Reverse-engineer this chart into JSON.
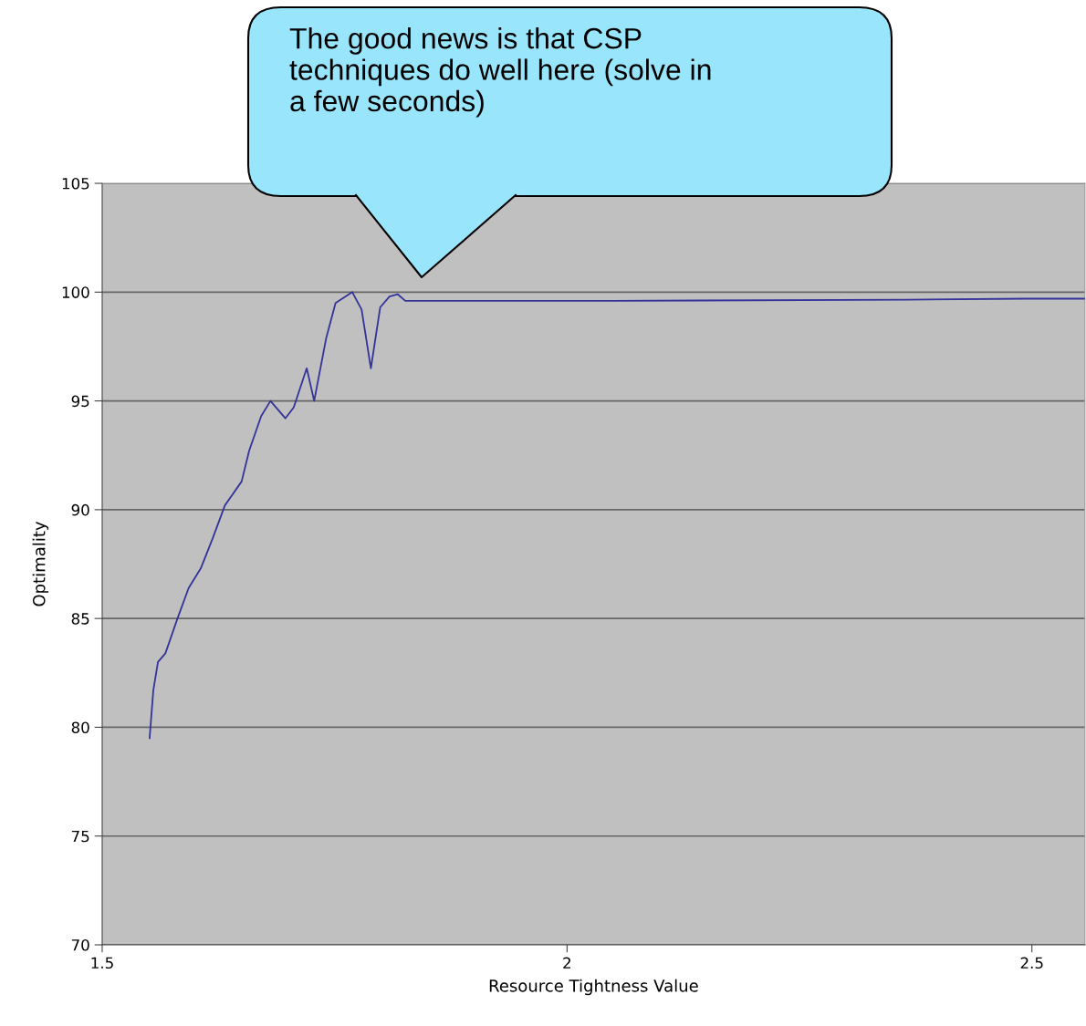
{
  "chart_data": {
    "type": "line",
    "xlabel": "Resource Tightness Value",
    "ylabel": "Optimality",
    "x": [
      1.551,
      1.555,
      1.56,
      1.568,
      1.581,
      1.593,
      1.606,
      1.619,
      1.632,
      1.65,
      1.658,
      1.671,
      1.681,
      1.697,
      1.706,
      1.72,
      1.728,
      1.741,
      1.751,
      1.769,
      1.779,
      1.789,
      1.799,
      1.809,
      1.818,
      1.826,
      2.049,
      2.366,
      2.493,
      2.557
    ],
    "series": [
      {
        "color": "#333399",
        "values": [
          79.5,
          81.7,
          83.0,
          83.4,
          85.0,
          86.4,
          87.3,
          88.7,
          90.2,
          91.3,
          92.7,
          94.3,
          95.0,
          94.2,
          94.7,
          96.5,
          95.0,
          97.9,
          99.5,
          100.0,
          99.2,
          96.5,
          99.3,
          99.8,
          99.9,
          99.6,
          99.6,
          99.65,
          99.7,
          99.7
        ]
      }
    ],
    "xlim": [
      1.5,
      2.557
    ],
    "xticks": [
      1.5,
      2,
      2.5
    ],
    "ylim": [
      70,
      105
    ],
    "yticks": [
      70,
      75,
      80,
      85,
      90,
      95,
      100,
      105
    ],
    "grid": "y",
    "marker": "none",
    "line_style": "solid",
    "annotations": [
      "The good news is that CSP\ntechniques do well here (solve in\na few seconds)"
    ]
  }
}
